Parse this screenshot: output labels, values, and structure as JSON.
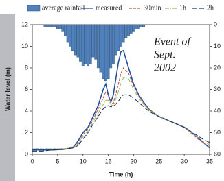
{
  "chart_data": {
    "type": "line",
    "xlabel": "Time (h)",
    "ylabel": "Water level (m)",
    "annotation": [
      "Event of",
      "Sept.",
      "2002"
    ],
    "xlim": [
      0,
      35
    ],
    "xticks": [
      0,
      5,
      10,
      15,
      20,
      25,
      30,
      35
    ],
    "ylim": [
      0,
      12
    ],
    "yticks": [
      0,
      2,
      4,
      6,
      8,
      10,
      12
    ],
    "y2lim": [
      0,
      60
    ],
    "y2ticks": [
      0,
      10,
      20,
      30,
      40,
      50,
      60
    ],
    "y2_inverted": true,
    "grid": false,
    "x": [
      0,
      2,
      4,
      6,
      7,
      8,
      9,
      10,
      11,
      12,
      13,
      14,
      14.5,
      15,
      15.5,
      16,
      17,
      17.5,
      18,
      19,
      20,
      21,
      22,
      23,
      24,
      25,
      26,
      27,
      28,
      29,
      30,
      31,
      32,
      33,
      34,
      35
    ],
    "series": [
      {
        "name": "average rainfall",
        "type": "bar",
        "axis": "y2",
        "color": "#4f81bd",
        "x": [
          2.5,
          3,
          3.5,
          4,
          4.5,
          5,
          5.5,
          6,
          6.5,
          7,
          7.5,
          8,
          8.5,
          9,
          9.5,
          10,
          10.5,
          11,
          11.5,
          12,
          12.5,
          13,
          13.5,
          14,
          14.5,
          15,
          15.5,
          16,
          16.5,
          17,
          17.5,
          18,
          18.5,
          19,
          19.5,
          20,
          20.5,
          21,
          21.5,
          22
        ],
        "values": [
          1,
          1,
          1,
          1,
          1,
          2,
          2,
          3,
          5,
          8,
          10,
          12,
          14,
          15,
          17,
          19,
          18,
          19,
          18,
          15,
          16,
          20,
          22,
          25,
          26,
          25,
          20,
          18,
          14,
          12,
          10,
          8,
          6,
          5,
          4,
          3,
          2,
          2,
          1,
          1
        ]
      },
      {
        "name": "measured",
        "color": "#1f4e9c",
        "dash": "none",
        "values": [
          0.4,
          0.4,
          0.4,
          0.45,
          0.5,
          0.6,
          1.2,
          2.0,
          2.5,
          3.5,
          4.5,
          6.0,
          6.5,
          5.5,
          4.8,
          5.5,
          8.5,
          9.5,
          9.6,
          8.0,
          6.5,
          5.5,
          4.8,
          4.2,
          3.8,
          3.5,
          3.3,
          3.1,
          2.9,
          2.7,
          2.5,
          2.2,
          1.8,
          1.4,
          1.0,
          0.6
        ]
      },
      {
        "name": "30min",
        "color": "#c0504d",
        "dash": "4,2",
        "values": [
          0.5,
          0.5,
          0.5,
          0.5,
          0.55,
          0.7,
          1.0,
          1.8,
          2.4,
          3.2,
          4.2,
          5.2,
          5.8,
          5.5,
          4.8,
          4.7,
          6.5,
          7.5,
          8.0,
          7.5,
          6.3,
          5.4,
          4.7,
          4.2,
          3.8,
          3.5,
          3.3,
          3.1,
          2.9,
          2.7,
          2.5,
          2.1,
          1.7,
          1.3,
          1.0,
          0.8
        ]
      },
      {
        "name": "1h",
        "color": "#9bbb59",
        "dash": "6,2,1,2",
        "values": [
          0.5,
          0.5,
          0.5,
          0.5,
          0.55,
          0.7,
          0.9,
          1.6,
          2.2,
          3.0,
          3.8,
          4.6,
          5.0,
          5.0,
          4.6,
          4.5,
          5.8,
          6.6,
          7.1,
          7.0,
          6.0,
          5.2,
          4.6,
          4.1,
          3.8,
          3.5,
          3.3,
          3.1,
          2.9,
          2.7,
          2.5,
          2.1,
          1.8,
          1.4,
          1.1,
          0.9
        ]
      },
      {
        "name": "2h",
        "color": "#1f3864",
        "dash": "7,3",
        "values": [
          0.3,
          0.3,
          0.4,
          0.45,
          0.5,
          0.6,
          0.8,
          1.4,
          2.0,
          2.8,
          3.5,
          4.2,
          4.4,
          4.5,
          4.4,
          4.4,
          4.9,
          5.3,
          5.5,
          5.5,
          5.2,
          4.8,
          4.4,
          4.0,
          3.7,
          3.5,
          3.3,
          3.1,
          2.9,
          2.7,
          2.5,
          2.2,
          1.9,
          1.6,
          1.3,
          1.1
        ]
      }
    ]
  }
}
